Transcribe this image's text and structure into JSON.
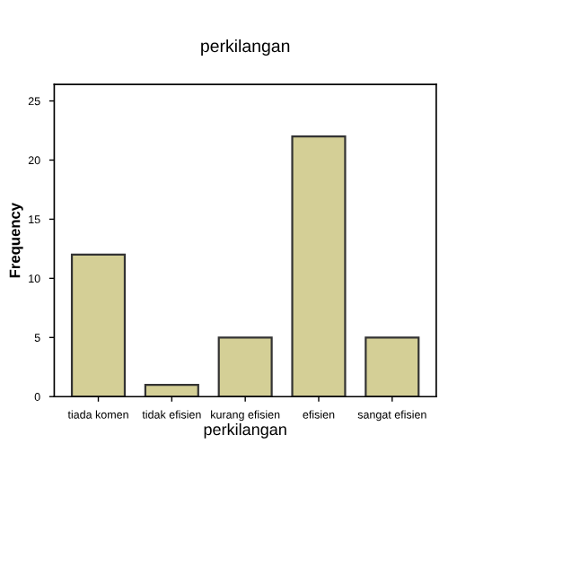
{
  "chart_data": {
    "type": "bar",
    "title": "perkilangan",
    "xlabel": "perkilangan",
    "ylabel": "Frequency",
    "categories": [
      "tiada komen",
      "tidak efisien",
      "kurang efisien",
      "efisien",
      "sangat efisien"
    ],
    "values": [
      12,
      1,
      5,
      22,
      5
    ],
    "color": "#d4cf96",
    "ylim": [
      0,
      26.4
    ],
    "yticks": [
      0,
      5,
      10,
      15,
      20,
      25
    ],
    "grid": false
  }
}
